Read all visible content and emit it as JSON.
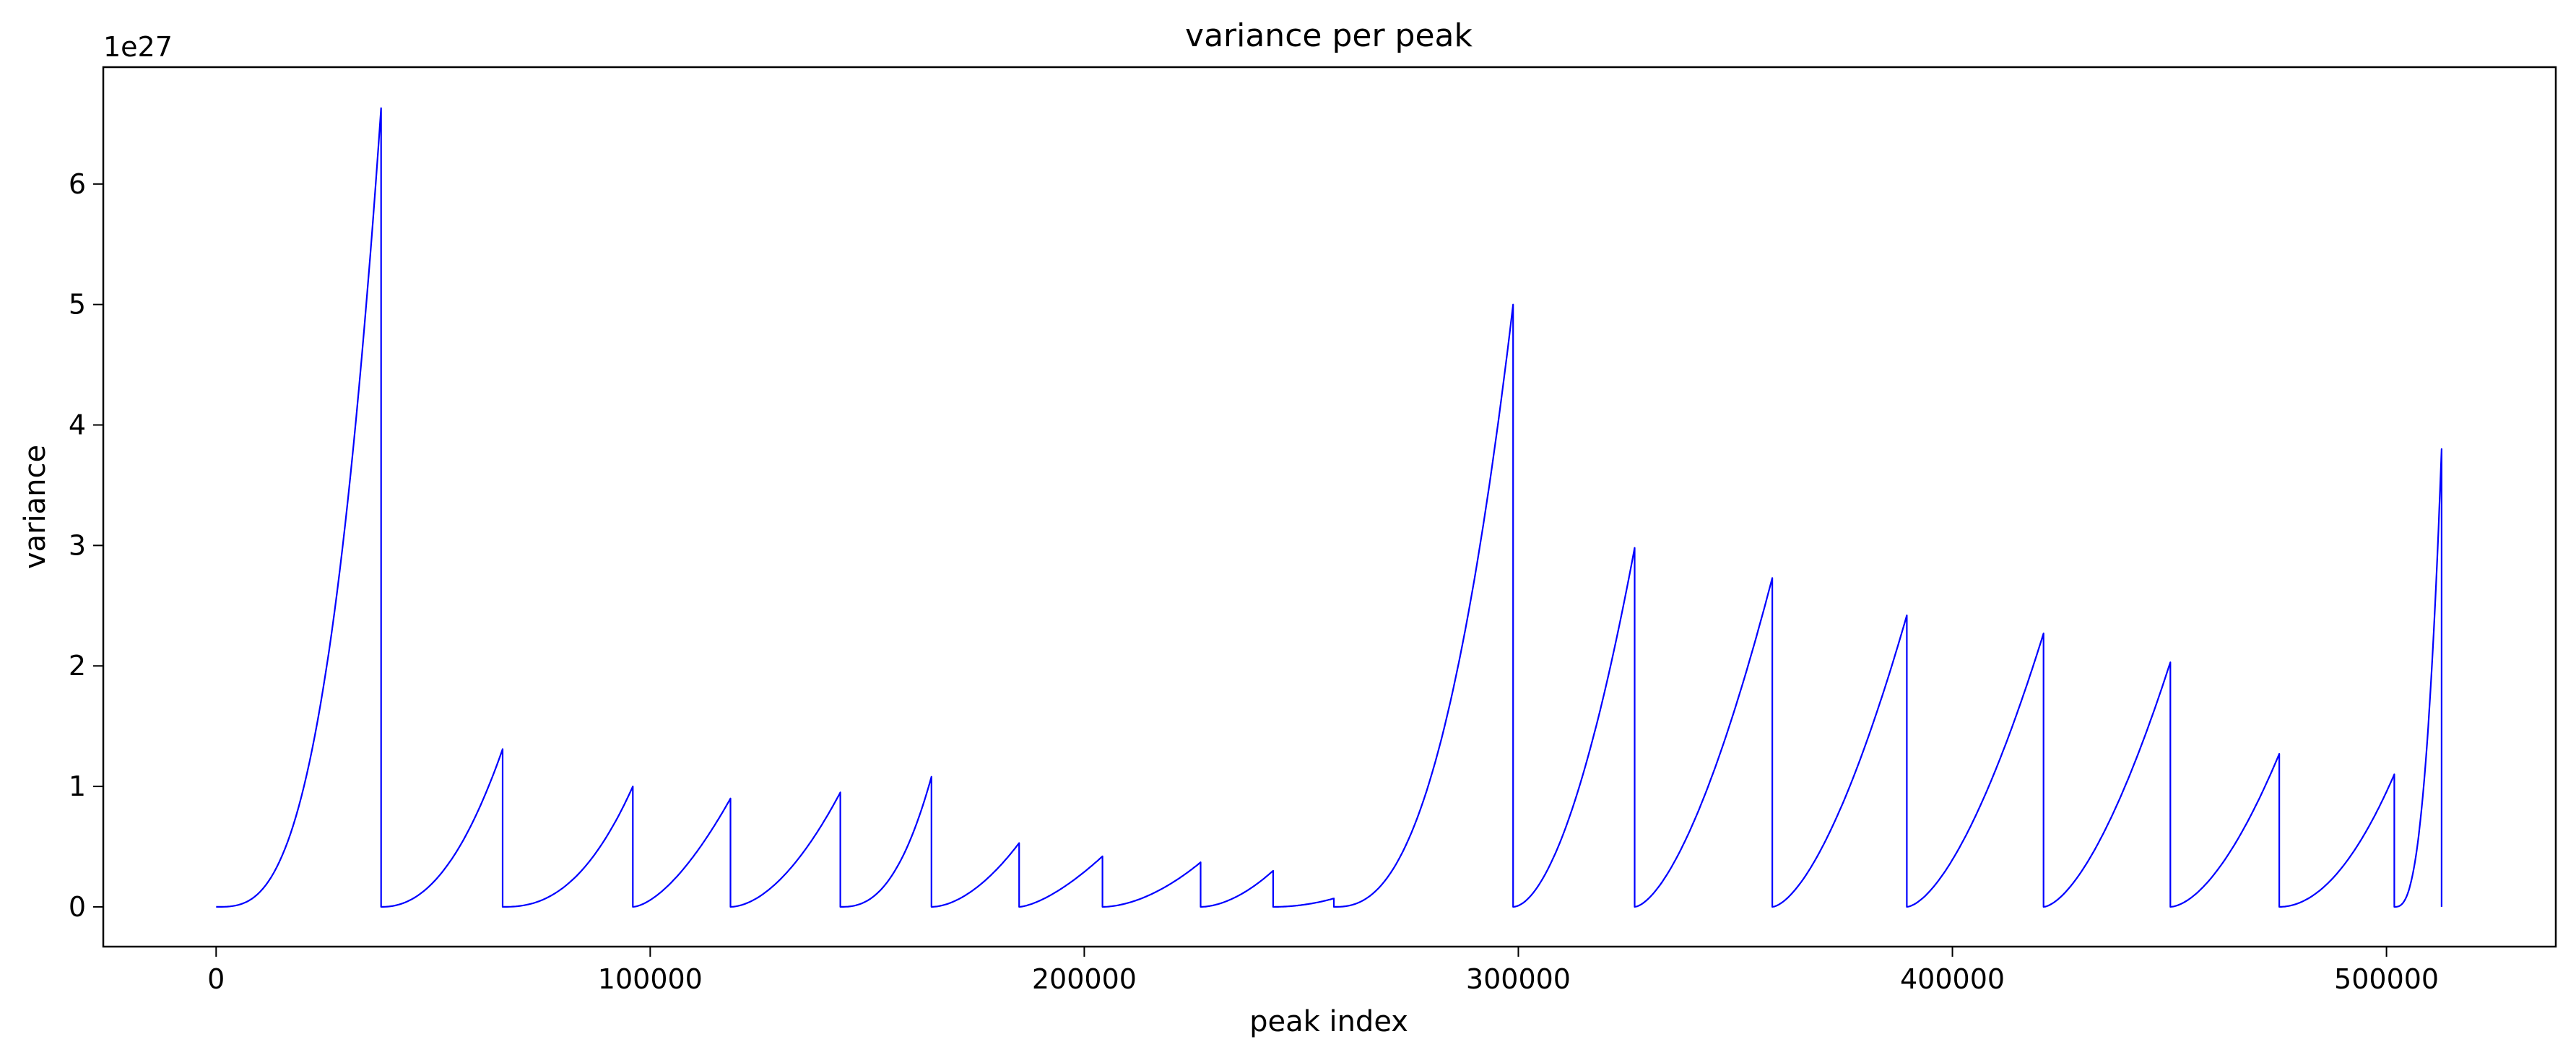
{
  "chart_data": {
    "type": "line",
    "title": "variance per peak",
    "xlabel": "peak index",
    "ylabel": "variance",
    "y_offset_label": "1e27",
    "y_scale_factor": 1e+27,
    "xlim": [
      -26000,
      539000
    ],
    "ylim": [
      -0.33,
      6.97
    ],
    "x_ticks": [
      0,
      100000,
      200000,
      300000,
      400000,
      500000
    ],
    "x_tick_labels": [
      "0",
      "100000",
      "200000",
      "300000",
      "400000",
      "500000"
    ],
    "y_ticks": [
      0,
      1,
      2,
      3,
      4,
      5,
      6
    ],
    "y_tick_labels": [
      "0",
      "1",
      "2",
      "3",
      "4",
      "5",
      "6"
    ],
    "grid": false,
    "line_color": "#0000ff",
    "series": [
      {
        "segments": [
          {
            "start": 0,
            "end": 38000,
            "peak": 6.63,
            "shape": 3.0
          },
          {
            "start": 38000,
            "end": 66000,
            "peak": 1.31,
            "shape": 2.2
          },
          {
            "start": 66000,
            "end": 96000,
            "peak": 1.0,
            "shape": 2.4
          },
          {
            "start": 96000,
            "end": 118500,
            "peak": 0.9,
            "shape": 1.6
          },
          {
            "start": 118500,
            "end": 143800,
            "peak": 0.95,
            "shape": 1.8
          },
          {
            "start": 143800,
            "end": 164800,
            "peak": 1.08,
            "shape": 2.5
          },
          {
            "start": 164800,
            "end": 185000,
            "peak": 0.53,
            "shape": 1.8
          },
          {
            "start": 185000,
            "end": 204200,
            "peak": 0.42,
            "shape": 1.5
          },
          {
            "start": 204200,
            "end": 226800,
            "peak": 0.37,
            "shape": 1.8
          },
          {
            "start": 226800,
            "end": 243500,
            "peak": 0.3,
            "shape": 1.8
          },
          {
            "start": 243500,
            "end": 257500,
            "peak": 0.07,
            "shape": 2.0
          },
          {
            "start": 257500,
            "end": 298800,
            "peak": 5.0,
            "shape": 2.5
          },
          {
            "start": 298800,
            "end": 326800,
            "peak": 2.98,
            "shape": 1.8
          },
          {
            "start": 326800,
            "end": 358500,
            "peak": 2.73,
            "shape": 1.6
          },
          {
            "start": 358500,
            "end": 389500,
            "peak": 2.42,
            "shape": 1.6
          },
          {
            "start": 389500,
            "end": 421000,
            "peak": 2.27,
            "shape": 1.6
          },
          {
            "start": 421000,
            "end": 450200,
            "peak": 2.03,
            "shape": 1.6
          },
          {
            "start": 450200,
            "end": 475300,
            "peak": 1.27,
            "shape": 1.7
          },
          {
            "start": 475300,
            "end": 501800,
            "peak": 1.1,
            "shape": 2.0
          },
          {
            "start": 501800,
            "end": 512700,
            "peak": 3.8,
            "shape": 2.8
          }
        ]
      }
    ]
  }
}
